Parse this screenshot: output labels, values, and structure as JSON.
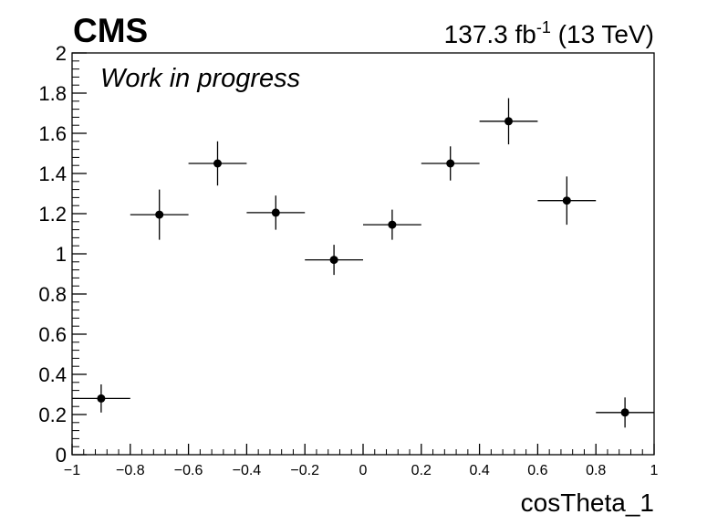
{
  "experiment_label": "CMS",
  "status_label": "Work in progress",
  "lumi_prefix": "137.3 fb",
  "lumi_exponent": "-1",
  "lumi_suffix": "(13 TeV)",
  "chart_data": {
    "type": "scatter",
    "xlabel": "cosTheta_1",
    "ylabel": "",
    "xlim": [
      -1,
      1
    ],
    "ylim": [
      0,
      2
    ],
    "grid": false,
    "x_ticks": [
      -1,
      -0.8,
      -0.6,
      -0.4,
      -0.2,
      0,
      0.2,
      0.4,
      0.6,
      0.8,
      1
    ],
    "x_tick_labels": [
      "−1",
      "−0.8",
      "−0.6",
      "−0.4",
      "−0.2",
      "0",
      "0.2",
      "0.4",
      "0.6",
      "0.8",
      "1"
    ],
    "y_ticks": [
      0,
      0.2,
      0.4,
      0.6,
      0.8,
      1,
      1.2,
      1.4,
      1.6,
      1.8,
      2
    ],
    "y_tick_labels": [
      "0",
      "0.2",
      "0.4",
      "0.6",
      "0.8",
      "1",
      "1.2",
      "1.4",
      "1.6",
      "1.8",
      "2"
    ],
    "points": [
      {
        "x": -0.9,
        "y": 0.28,
        "xerr": 0.1,
        "yerr": 0.07
      },
      {
        "x": -0.7,
        "y": 1.195,
        "xerr": 0.1,
        "yerr": 0.125
      },
      {
        "x": -0.5,
        "y": 1.45,
        "xerr": 0.1,
        "yerr": 0.11
      },
      {
        "x": -0.3,
        "y": 1.205,
        "xerr": 0.1,
        "yerr": 0.085
      },
      {
        "x": -0.1,
        "y": 0.97,
        "xerr": 0.1,
        "yerr": 0.075
      },
      {
        "x": 0.1,
        "y": 1.145,
        "xerr": 0.1,
        "yerr": 0.075
      },
      {
        "x": 0.3,
        "y": 1.45,
        "xerr": 0.1,
        "yerr": 0.085
      },
      {
        "x": 0.5,
        "y": 1.66,
        "xerr": 0.1,
        "yerr": 0.115
      },
      {
        "x": 0.7,
        "y": 1.265,
        "xerr": 0.1,
        "yerr": 0.12
      },
      {
        "x": 0.9,
        "y": 0.21,
        "xerr": 0.1,
        "yerr": 0.075
      }
    ]
  }
}
